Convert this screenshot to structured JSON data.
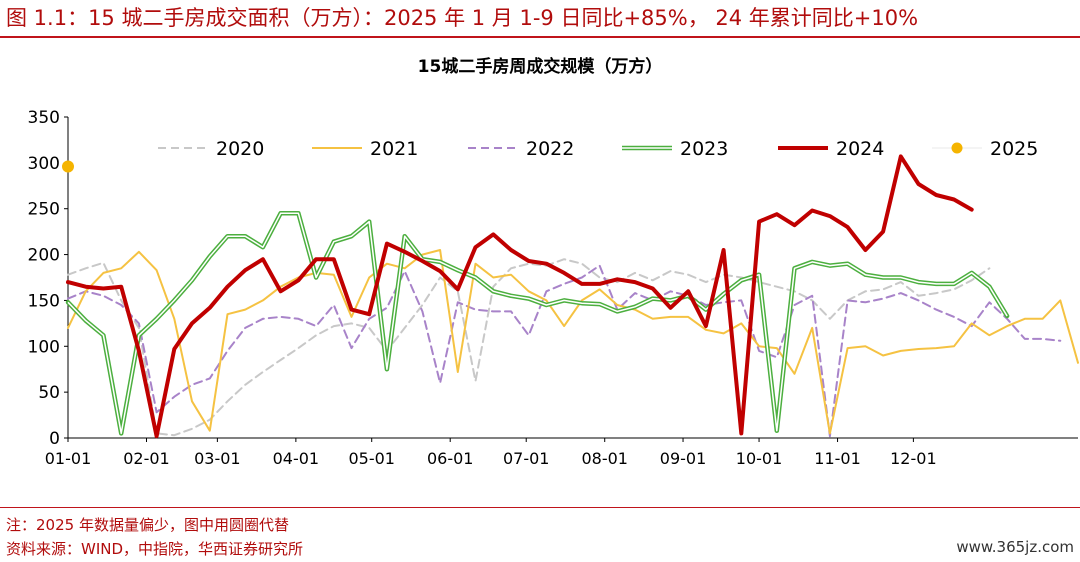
{
  "figure_title": "图 1.1：15 城二手房成交面积（万方）：2025 年 1 月 1-9 日同比+85%， 24 年累计同比+10%",
  "notes": {
    "note": "注：2025 年数据量偏少，图中用圆圈代替",
    "source": "资料来源：WIND，中指院，华西证券研究所"
  },
  "watermark": "www.365jz.com",
  "colors": {
    "accent": "#c0141b",
    "s2020": "#c8c8c8",
    "s2021": "#f5c242",
    "s2022": "#a883c9",
    "s2023": "#4caf3f",
    "s2024": "#c00000",
    "s2025": "#f5b400"
  },
  "chart_data": {
    "type": "line",
    "title": "15城二手房周成交规模（万方）",
    "xlabel": "",
    "ylabel": "",
    "ylim": [
      0,
      350
    ],
    "yticks": [
      0,
      50,
      100,
      150,
      200,
      250,
      300,
      350
    ],
    "x_ticks": [
      "01-01",
      "02-01",
      "03-01",
      "04-01",
      "05-01",
      "06-01",
      "07-01",
      "08-01",
      "09-01",
      "10-01",
      "11-01",
      "12-01"
    ],
    "x_unit": "week of year (0 = 01-01, 52 = end of year)",
    "grid": false,
    "legend_position": "top",
    "series": [
      {
        "name": "2020",
        "style": "dashed",
        "values": [
          [
            0,
            178
          ],
          [
            1,
            185
          ],
          [
            2,
            191
          ],
          [
            3,
            150
          ],
          [
            4,
            120
          ],
          [
            5,
            5
          ],
          [
            6,
            3
          ],
          [
            7,
            10
          ],
          [
            8,
            20
          ],
          [
            9,
            40
          ],
          [
            10,
            58
          ],
          [
            11,
            72
          ],
          [
            12,
            85
          ],
          [
            13,
            98
          ],
          [
            14,
            112
          ],
          [
            15,
            122
          ],
          [
            16,
            125
          ],
          [
            17,
            120
          ],
          [
            18,
            95
          ],
          [
            19,
            120
          ],
          [
            20,
            145
          ],
          [
            21,
            175
          ],
          [
            22,
            160
          ],
          [
            23,
            62
          ],
          [
            24,
            165
          ],
          [
            25,
            185
          ],
          [
            26,
            190
          ],
          [
            27,
            188
          ],
          [
            28,
            195
          ],
          [
            29,
            190
          ],
          [
            30,
            175
          ],
          [
            31,
            170
          ],
          [
            32,
            180
          ],
          [
            33,
            172
          ],
          [
            34,
            182
          ],
          [
            35,
            178
          ],
          [
            36,
            170
          ],
          [
            37,
            178
          ],
          [
            38,
            175
          ],
          [
            39,
            170
          ],
          [
            40,
            165
          ],
          [
            41,
            160
          ],
          [
            42,
            150
          ],
          [
            43,
            130
          ],
          [
            44,
            150
          ],
          [
            45,
            160
          ],
          [
            46,
            162
          ],
          [
            47,
            170
          ],
          [
            48,
            155
          ],
          [
            49,
            158
          ],
          [
            50,
            162
          ],
          [
            51,
            172
          ],
          [
            52,
            185
          ]
        ]
      },
      {
        "name": "2021",
        "style": "solid-thin",
        "values": [
          [
            0,
            120
          ],
          [
            1,
            160
          ],
          [
            2,
            180
          ],
          [
            3,
            185
          ],
          [
            4,
            203
          ],
          [
            5,
            183
          ],
          [
            6,
            130
          ],
          [
            7,
            40
          ],
          [
            8,
            8
          ],
          [
            9,
            135
          ],
          [
            10,
            140
          ],
          [
            11,
            150
          ],
          [
            12,
            165
          ],
          [
            13,
            175
          ],
          [
            14,
            180
          ],
          [
            15,
            178
          ],
          [
            16,
            132
          ],
          [
            17,
            175
          ],
          [
            18,
            190
          ],
          [
            19,
            185
          ],
          [
            20,
            200
          ],
          [
            21,
            205
          ],
          [
            22,
            72
          ],
          [
            23,
            190
          ],
          [
            24,
            175
          ],
          [
            25,
            178
          ],
          [
            26,
            160
          ],
          [
            27,
            150
          ],
          [
            28,
            122
          ],
          [
            29,
            150
          ],
          [
            30,
            162
          ],
          [
            31,
            145
          ],
          [
            32,
            140
          ],
          [
            33,
            130
          ],
          [
            34,
            132
          ],
          [
            35,
            132
          ],
          [
            36,
            118
          ],
          [
            37,
            114
          ],
          [
            38,
            125
          ],
          [
            39,
            100
          ],
          [
            40,
            98
          ],
          [
            41,
            70
          ],
          [
            42,
            120
          ],
          [
            43,
            5
          ],
          [
            44,
            98
          ],
          [
            45,
            100
          ],
          [
            46,
            90
          ],
          [
            47,
            95
          ],
          [
            48,
            97
          ],
          [
            49,
            98
          ],
          [
            50,
            100
          ],
          [
            51,
            125
          ],
          [
            52,
            112
          ],
          [
            53,
            122
          ],
          [
            54,
            130
          ],
          [
            55,
            130
          ],
          [
            56,
            150
          ],
          [
            57,
            82
          ]
        ]
      },
      {
        "name": "2022",
        "style": "dashed",
        "values": [
          [
            0,
            152
          ],
          [
            1,
            160
          ],
          [
            2,
            155
          ],
          [
            3,
            145
          ],
          [
            4,
            125
          ],
          [
            5,
            28
          ],
          [
            6,
            45
          ],
          [
            7,
            58
          ],
          [
            8,
            65
          ],
          [
            9,
            95
          ],
          [
            10,
            120
          ],
          [
            11,
            130
          ],
          [
            12,
            132
          ],
          [
            13,
            130
          ],
          [
            14,
            122
          ],
          [
            15,
            145
          ],
          [
            16,
            98
          ],
          [
            17,
            130
          ],
          [
            18,
            142
          ],
          [
            19,
            182
          ],
          [
            20,
            138
          ],
          [
            21,
            60
          ],
          [
            22,
            148
          ],
          [
            23,
            140
          ],
          [
            24,
            138
          ],
          [
            25,
            138
          ],
          [
            26,
            112
          ],
          [
            27,
            160
          ],
          [
            28,
            168
          ],
          [
            29,
            175
          ],
          [
            30,
            188
          ],
          [
            31,
            140
          ],
          [
            32,
            158
          ],
          [
            33,
            150
          ],
          [
            34,
            160
          ],
          [
            35,
            155
          ],
          [
            36,
            145
          ],
          [
            37,
            148
          ],
          [
            38,
            150
          ],
          [
            39,
            95
          ],
          [
            40,
            88
          ],
          [
            41,
            145
          ],
          [
            42,
            155
          ],
          [
            43,
            2
          ],
          [
            44,
            150
          ],
          [
            45,
            148
          ],
          [
            46,
            152
          ],
          [
            47,
            158
          ],
          [
            48,
            150
          ],
          [
            49,
            140
          ],
          [
            50,
            132
          ],
          [
            51,
            122
          ],
          [
            52,
            148
          ],
          [
            53,
            130
          ],
          [
            54,
            108
          ],
          [
            55,
            108
          ],
          [
            56,
            106
          ]
        ]
      },
      {
        "name": "2023",
        "style": "double",
        "values": [
          [
            0,
            148
          ],
          [
            1,
            128
          ],
          [
            2,
            112
          ],
          [
            3,
            5
          ],
          [
            4,
            112
          ],
          [
            5,
            130
          ],
          [
            6,
            150
          ],
          [
            7,
            172
          ],
          [
            8,
            198
          ],
          [
            9,
            220
          ],
          [
            10,
            220
          ],
          [
            11,
            208
          ],
          [
            12,
            245
          ],
          [
            13,
            245
          ],
          [
            14,
            175
          ],
          [
            15,
            214
          ],
          [
            16,
            220
          ],
          [
            17,
            236
          ],
          [
            18,
            75
          ],
          [
            19,
            220
          ],
          [
            20,
            195
          ],
          [
            21,
            192
          ],
          [
            22,
            183
          ],
          [
            23,
            175
          ],
          [
            24,
            160
          ],
          [
            25,
            155
          ],
          [
            26,
            152
          ],
          [
            27,
            145
          ],
          [
            28,
            150
          ],
          [
            29,
            147
          ],
          [
            30,
            146
          ],
          [
            31,
            138
          ],
          [
            32,
            143
          ],
          [
            33,
            152
          ],
          [
            34,
            150
          ],
          [
            35,
            155
          ],
          [
            36,
            140
          ],
          [
            37,
            157
          ],
          [
            38,
            172
          ],
          [
            39,
            178
          ],
          [
            40,
            8
          ],
          [
            41,
            185
          ],
          [
            42,
            192
          ],
          [
            43,
            188
          ],
          [
            44,
            190
          ],
          [
            45,
            178
          ],
          [
            46,
            175
          ],
          [
            47,
            175
          ],
          [
            48,
            170
          ],
          [
            49,
            168
          ],
          [
            50,
            168
          ],
          [
            51,
            180
          ],
          [
            52,
            165
          ],
          [
            53,
            133
          ]
        ]
      },
      {
        "name": "2024",
        "style": "bold",
        "values": [
          [
            0,
            170
          ],
          [
            1,
            165
          ],
          [
            2,
            163
          ],
          [
            3,
            165
          ],
          [
            4,
            95
          ],
          [
            5,
            2
          ],
          [
            6,
            97
          ],
          [
            7,
            125
          ],
          [
            8,
            142
          ],
          [
            9,
            165
          ],
          [
            10,
            183
          ],
          [
            11,
            195
          ],
          [
            12,
            160
          ],
          [
            13,
            172
          ],
          [
            14,
            195
          ],
          [
            15,
            195
          ],
          [
            16,
            140
          ],
          [
            17,
            135
          ],
          [
            18,
            212
          ],
          [
            19,
            203
          ],
          [
            20,
            193
          ],
          [
            21,
            182
          ],
          [
            22,
            162
          ],
          [
            23,
            208
          ],
          [
            24,
            222
          ],
          [
            25,
            205
          ],
          [
            26,
            193
          ],
          [
            27,
            190
          ],
          [
            28,
            180
          ],
          [
            29,
            168
          ],
          [
            30,
            168
          ],
          [
            31,
            173
          ],
          [
            32,
            170
          ],
          [
            33,
            163
          ],
          [
            34,
            142
          ],
          [
            35,
            160
          ],
          [
            36,
            122
          ],
          [
            37,
            205
          ],
          [
            38,
            5
          ],
          [
            39,
            236
          ],
          [
            40,
            244
          ],
          [
            41,
            232
          ],
          [
            42,
            248
          ],
          [
            43,
            242
          ],
          [
            44,
            230
          ],
          [
            45,
            205
          ],
          [
            46,
            225
          ],
          [
            47,
            307
          ],
          [
            48,
            277
          ],
          [
            49,
            265
          ],
          [
            50,
            260
          ],
          [
            51,
            249
          ]
        ]
      },
      {
        "name": "2025",
        "style": "point",
        "values": [
          [
            0,
            296
          ]
        ]
      }
    ]
  }
}
